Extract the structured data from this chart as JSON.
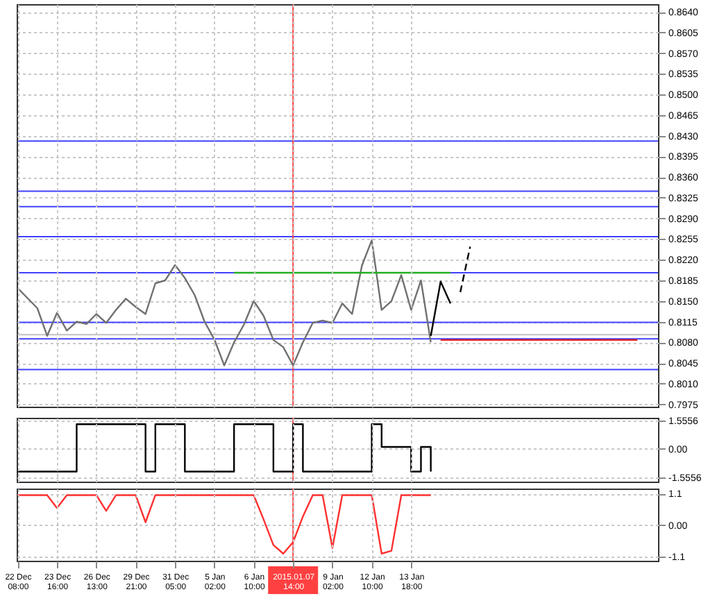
{
  "chart_data": [
    {
      "type": "line",
      "ylim": [
        0.7971,
        0.8653
      ],
      "tick_labels": "y",
      "grid": true,
      "categories": [
        "22 Dec 08:00",
        null,
        null,
        null,
        "23 Dec 16:00",
        null,
        null,
        null,
        "26 Dec 13:00",
        null,
        null,
        null,
        "29 Dec 21:00",
        null,
        null,
        null,
        "31 Dec 05:00",
        null,
        null,
        null,
        "5 Jan 02:00",
        null,
        null,
        null,
        "6 Jan 10:00",
        null,
        null,
        null,
        "2015.01.07 14:00",
        null,
        null,
        null,
        "9 Jan 02:00",
        null,
        null,
        null,
        "12 Jan 10:00",
        null,
        null,
        null,
        "13 Jan 18:00",
        null,
        null,
        null,
        null,
        null,
        null,
        null,
        null,
        null,
        null,
        null,
        null,
        null,
        null,
        null,
        null,
        null,
        null,
        null,
        null,
        null,
        null,
        null,
        null,
        null
      ],
      "yticks": [
        {
          "value": 0.7975,
          "label": "0.7975"
        },
        {
          "value": 0.801,
          "label": "0.8010"
        },
        {
          "value": 0.8045,
          "label": "0.8045"
        },
        {
          "value": 0.808,
          "label": "0.8080"
        },
        {
          "value": 0.8115,
          "label": "0.8115"
        },
        {
          "value": 0.815,
          "label": "0.8150"
        },
        {
          "value": 0.8185,
          "label": "0.8185"
        },
        {
          "value": 0.822,
          "label": "0.8220"
        },
        {
          "value": 0.8255,
          "label": "0.8255"
        },
        {
          "value": 0.829,
          "label": "0.8290"
        },
        {
          "value": 0.8325,
          "label": "0.8325"
        },
        {
          "value": 0.836,
          "label": "0.8360"
        },
        {
          "value": 0.8395,
          "label": "0.8395"
        },
        {
          "value": 0.843,
          "label": "0.8430"
        },
        {
          "value": 0.8465,
          "label": "0.8465"
        },
        {
          "value": 0.85,
          "label": "0.8500"
        },
        {
          "value": 0.8535,
          "label": "0.8535"
        },
        {
          "value": 0.857,
          "label": "0.8570"
        },
        {
          "value": 0.8605,
          "label": "0.8605"
        },
        {
          "value": 0.864,
          "label": "0.8640"
        }
      ],
      "ref_lines": [
        {
          "axis": "y",
          "value": 0.8421,
          "color": "#4040ff"
        },
        {
          "axis": "y",
          "value": 0.8336,
          "color": "#4040ff"
        },
        {
          "axis": "y",
          "value": 0.831,
          "color": "#4040ff"
        },
        {
          "axis": "y",
          "value": 0.8259,
          "color": "#4040ff"
        },
        {
          "axis": "y",
          "value": 0.8198,
          "color": "#4040ff"
        },
        {
          "axis": "y",
          "value": 0.8114,
          "color": "#4040ff"
        },
        {
          "axis": "y",
          "value": 0.8093,
          "color": "#c0c0c0"
        },
        {
          "axis": "y",
          "value": 0.8086,
          "color": "#4040ff"
        },
        {
          "axis": "y",
          "value": 0.8034,
          "color": "#4040ff"
        },
        {
          "axis": "x",
          "value": "2015.01.07 14:00",
          "color": "#ff4040"
        }
      ],
      "series": [
        {
          "color": "#707070",
          "values": [
            0.8172,
            0.8155,
            0.8138,
            0.8091,
            0.813,
            0.81,
            0.8115,
            0.8111,
            0.8128,
            0.8113,
            0.8135,
            0.8154,
            0.814,
            0.8128,
            0.818,
            0.8185,
            0.8211,
            0.8189,
            0.816,
            0.8115,
            0.8085,
            0.8041,
            0.808,
            0.811,
            0.815,
            0.8125,
            0.8084,
            0.8072,
            0.8041,
            0.808,
            0.8113,
            0.8117,
            0.8113,
            0.8146,
            0.8128,
            0.821,
            0.8253,
            0.8135,
            0.815,
            0.8194,
            0.8135,
            0.8185,
            0.808,
            null,
            null,
            null,
            null,
            null,
            null,
            null,
            null,
            null,
            null,
            null,
            null,
            null,
            null,
            null,
            null,
            null,
            null,
            null,
            null,
            null,
            null,
            null
          ]
        },
        {
          "color": "#20b020",
          "values": [
            null,
            null,
            null,
            null,
            null,
            null,
            null,
            null,
            null,
            null,
            null,
            null,
            null,
            null,
            null,
            null,
            null,
            null,
            null,
            null,
            null,
            null,
            0.8198,
            0.8198,
            0.8198,
            0.8198,
            0.8198,
            0.8198,
            0.8198,
            0.8198,
            0.8198,
            0.8198,
            0.8198,
            0.8198,
            0.8198,
            0.8198,
            0.8198,
            0.8198,
            0.8198,
            0.8198,
            0.8198,
            0.8198,
            0.8198,
            0.8198,
            0.8198,
            null,
            null,
            null,
            null,
            null,
            null,
            null,
            null,
            null,
            null,
            null,
            null,
            null,
            null,
            null,
            null,
            null,
            null,
            null,
            null,
            null
          ]
        },
        {
          "color": "#e02020",
          "values": [
            null,
            null,
            null,
            null,
            null,
            null,
            null,
            null,
            null,
            null,
            null,
            null,
            null,
            null,
            null,
            null,
            null,
            null,
            null,
            null,
            null,
            null,
            null,
            null,
            null,
            null,
            null,
            null,
            null,
            null,
            null,
            null,
            null,
            null,
            null,
            null,
            null,
            null,
            null,
            null,
            null,
            null,
            null,
            0.8084,
            0.8084,
            0.8084,
            0.8084,
            0.8084,
            0.8084,
            0.8084,
            0.8084,
            0.8084,
            0.8084,
            0.8084,
            0.8084,
            0.8084,
            0.8084,
            0.8084,
            0.8084,
            0.8084,
            0.8084,
            0.8084,
            0.8084,
            0.8084,
            null,
            null
          ]
        },
        {
          "color": "#000000",
          "values": [
            null,
            null,
            null,
            null,
            null,
            null,
            null,
            null,
            null,
            null,
            null,
            null,
            null,
            null,
            null,
            null,
            null,
            null,
            null,
            null,
            null,
            null,
            null,
            null,
            null,
            null,
            null,
            null,
            null,
            null,
            null,
            null,
            null,
            null,
            null,
            null,
            null,
            null,
            null,
            null,
            null,
            null,
            0.8091,
            0.8183,
            0.8146,
            null,
            null,
            null,
            null,
            null,
            null,
            null,
            null,
            null,
            null,
            null,
            null,
            null,
            null,
            null,
            null,
            null,
            null,
            null,
            null,
            null
          ]
        },
        {
          "color": "#000000",
          "line_style": "dashed",
          "values": [
            null,
            null,
            null,
            null,
            null,
            null,
            null,
            null,
            null,
            null,
            null,
            null,
            null,
            null,
            null,
            null,
            null,
            null,
            null,
            null,
            null,
            null,
            null,
            null,
            null,
            null,
            null,
            null,
            null,
            null,
            null,
            null,
            null,
            null,
            null,
            null,
            null,
            null,
            null,
            null,
            null,
            null,
            null,
            null,
            null,
            0.8165,
            0.8242,
            null,
            null,
            null,
            null,
            null,
            null,
            null,
            null,
            null,
            null,
            null,
            null,
            null,
            null,
            null,
            null,
            null,
            null,
            null
          ]
        }
      ]
    },
    {
      "type": "step",
      "ylim": [
        -1.8,
        1.7
      ],
      "tick_labels": "y",
      "grid": true,
      "categories": [
        "22 Dec 08:00",
        null,
        null,
        null,
        "23 Dec 16:00",
        null,
        null,
        null,
        "26 Dec 13:00",
        null,
        null,
        null,
        "29 Dec 21:00",
        null,
        null,
        null,
        "31 Dec 05:00",
        null,
        null,
        null,
        "5 Jan 02:00",
        null,
        null,
        null,
        "6 Jan 10:00",
        null,
        null,
        null,
        "2015.01.07 14:00",
        null,
        null,
        null,
        "9 Jan 02:00",
        null,
        null,
        null,
        "12 Jan 10:00",
        null,
        null,
        null,
        "13 Jan 18:00",
        null,
        null,
        null,
        null,
        null,
        null,
        null,
        null,
        null,
        null,
        null,
        null,
        null,
        null,
        null,
        null,
        null,
        null,
        null,
        null,
        null,
        null,
        null,
        null,
        null
      ],
      "yticks": [
        -1.5556,
        {
          "value": 0,
          "label": "0.00"
        },
        1.5556
      ],
      "ref_lines": [
        {
          "axis": "x",
          "value": "2015.01.07 14:00",
          "color": "#ff4040"
        }
      ],
      "series": [
        {
          "color": "#000000",
          "values": [
            -1.25,
            -1.25,
            -1.25,
            -1.25,
            -1.25,
            -1.25,
            1.35,
            1.35,
            1.35,
            1.35,
            1.35,
            1.35,
            1.35,
            -1.25,
            1.35,
            1.35,
            1.35,
            -1.25,
            -1.25,
            -1.25,
            -1.25,
            -1.25,
            1.35,
            1.35,
            1.35,
            1.35,
            -1.25,
            -1.25,
            1.35,
            -1.25,
            -1.25,
            -1.25,
            -1.25,
            -1.25,
            -1.25,
            -1.25,
            1.35,
            0.1,
            0.1,
            0.1,
            -1.25,
            0.1,
            -1.25,
            null,
            null,
            null,
            null,
            null,
            null,
            null,
            null,
            null,
            null,
            null,
            null,
            null,
            null,
            null,
            null,
            null,
            null,
            null,
            null,
            null,
            null,
            null
          ]
        }
      ]
    },
    {
      "type": "line",
      "ylim": [
        -1.25,
        1.28
      ],
      "grid": true,
      "categories": [
        "22 Dec 08:00",
        null,
        null,
        null,
        "23 Dec 16:00",
        null,
        null,
        null,
        "26 Dec 13:00",
        null,
        null,
        null,
        "29 Dec 21:00",
        null,
        null,
        null,
        "31 Dec 05:00",
        null,
        null,
        null,
        "5 Jan 02:00",
        null,
        null,
        null,
        "6 Jan 10:00",
        null,
        null,
        null,
        "2015.01.07 14:00",
        null,
        null,
        null,
        "9 Jan 02:00",
        null,
        null,
        null,
        "12 Jan 10:00",
        null,
        null,
        null,
        "13 Jan 18:00",
        null,
        null,
        null,
        null,
        null,
        null,
        null,
        null,
        null,
        null,
        null,
        null,
        null,
        null,
        null,
        null,
        null,
        null,
        null,
        null,
        null,
        null,
        null,
        null,
        null
      ],
      "yticks": [
        -1.1,
        {
          "value": 0,
          "label": "0.00"
        },
        1.1
      ],
      "ref_lines": [
        {
          "axis": "x",
          "value": "2015.01.07 14:00",
          "color": "#ff4040"
        }
      ],
      "series": [
        {
          "color": "#ff3030",
          "values": [
            1.05,
            1.05,
            1.05,
            1.05,
            0.6,
            1.05,
            1.05,
            1.05,
            1.05,
            0.5,
            1.05,
            1.05,
            1.05,
            0.1,
            1.05,
            1.05,
            1.05,
            1.05,
            1.05,
            1.05,
            1.05,
            1.05,
            1.05,
            1.05,
            1.05,
            0.2,
            -0.7,
            -1.0,
            -0.6,
            0.3,
            1.05,
            1.05,
            -0.8,
            1.05,
            1.05,
            1.05,
            1.05,
            -1.0,
            -0.9,
            1.05,
            1.05,
            1.05,
            1.05,
            null,
            null,
            null,
            null,
            null,
            null,
            null,
            null,
            null,
            null,
            null,
            null,
            null,
            null,
            null,
            null,
            null,
            null,
            null,
            null,
            null,
            null,
            null
          ]
        }
      ]
    }
  ]
}
